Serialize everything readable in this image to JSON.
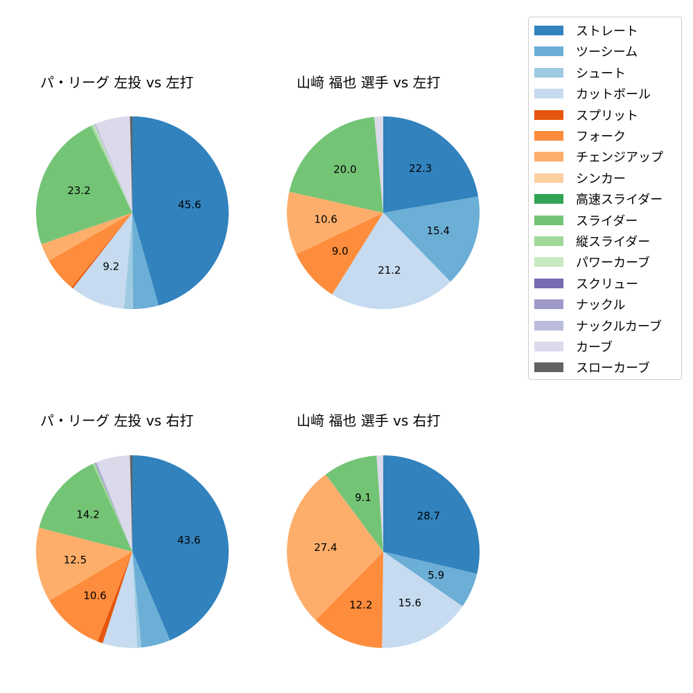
{
  "chart_data": [
    {
      "type": "pie",
      "title": "パ・リーグ 左投 vs 左打",
      "categories": [
        "ストレート",
        "ツーシーム",
        "シュート",
        "カットボール",
        "スプリット",
        "フォーク",
        "チェンジアップ",
        "シンカー",
        "高速スライダー",
        "スライダー",
        "縦スライダー",
        "パワーカーブ",
        "スクリュー",
        "ナックル",
        "ナックルカーブ",
        "カーブ",
        "スローカーブ"
      ],
      "values": [
        45.6,
        4.3,
        1.5,
        9.2,
        0.3,
        5.8,
        3.0,
        0.0,
        0.0,
        23.2,
        0.4,
        0.2,
        0.0,
        0.0,
        0.3,
        5.8,
        0.4
      ],
      "labels_shown": [
        "45.6",
        "9.2",
        "23.2"
      ]
    },
    {
      "type": "pie",
      "title": "山﨑 福也 選手 vs 左打",
      "categories": [
        "ストレート",
        "ツーシーム",
        "シュート",
        "カットボール",
        "スプリット",
        "フォーク",
        "チェンジアップ",
        "シンカー",
        "高速スライダー",
        "スライダー",
        "縦スライダー",
        "パワーカーブ",
        "スクリュー",
        "ナックル",
        "ナックルカーブ",
        "カーブ",
        "スローカーブ"
      ],
      "values": [
        22.3,
        15.4,
        0.0,
        21.2,
        0.0,
        9.0,
        10.6,
        0.0,
        0.0,
        20.0,
        0.0,
        0.0,
        0.0,
        0.0,
        0.0,
        1.5,
        0.0
      ],
      "labels_shown": [
        "22.3",
        "15.4",
        "21.2",
        "9.0",
        "10.6",
        "20.0"
      ]
    },
    {
      "type": "pie",
      "title": "パ・リーグ 左投 vs 右打",
      "categories": [
        "ストレート",
        "ツーシーム",
        "シュート",
        "カットボール",
        "スプリット",
        "フォーク",
        "チェンジアップ",
        "シンカー",
        "高速スライダー",
        "スライダー",
        "縦スライダー",
        "パワーカーブ",
        "スクリュー",
        "ナックル",
        "ナックルカーブ",
        "カーブ",
        "スローカーブ"
      ],
      "values": [
        43.6,
        4.9,
        0.7,
        5.8,
        0.9,
        10.6,
        12.5,
        0.0,
        0.0,
        14.2,
        0.4,
        0.0,
        0.0,
        0.2,
        0.2,
        5.6,
        0.4
      ],
      "labels_shown": [
        "43.6",
        "10.6",
        "12.5",
        "14.2"
      ]
    },
    {
      "type": "pie",
      "title": "山﨑 福也 選手 vs 右打",
      "categories": [
        "ストレート",
        "ツーシーム",
        "シュート",
        "カットボール",
        "スプリット",
        "フォーク",
        "チェンジアップ",
        "シンカー",
        "高速スライダー",
        "スライダー",
        "縦スライダー",
        "パワーカーブ",
        "スクリュー",
        "ナックル",
        "ナックルカーブ",
        "カーブ",
        "スローカーブ"
      ],
      "values": [
        28.7,
        5.9,
        0.0,
        15.6,
        0.0,
        12.2,
        27.4,
        0.0,
        0.0,
        9.1,
        0.0,
        0.0,
        0.0,
        0.0,
        0.0,
        1.1,
        0.0
      ],
      "labels_shown": [
        "28.7",
        "5.9",
        "15.6",
        "12.2",
        "27.4",
        "9.1"
      ]
    }
  ],
  "legend": {
    "items": [
      {
        "label": "ストレート",
        "color": "#3182bd"
      },
      {
        "label": "ツーシーム",
        "color": "#6baed6"
      },
      {
        "label": "シュート",
        "color": "#9ecae1"
      },
      {
        "label": "カットボール",
        "color": "#c6dbef"
      },
      {
        "label": "スプリット",
        "color": "#e6550d"
      },
      {
        "label": "フォーク",
        "color": "#fd8d3c"
      },
      {
        "label": "チェンジアップ",
        "color": "#fdae6b"
      },
      {
        "label": "シンカー",
        "color": "#fdd0a2"
      },
      {
        "label": "高速スライダー",
        "color": "#31a354"
      },
      {
        "label": "スライダー",
        "color": "#74c476"
      },
      {
        "label": "縦スライダー",
        "color": "#a1d99b"
      },
      {
        "label": "パワーカーブ",
        "color": "#c7e9c0"
      },
      {
        "label": "スクリュー",
        "color": "#756bb1"
      },
      {
        "label": "ナックル",
        "color": "#9e9ac8"
      },
      {
        "label": "ナックルカーブ",
        "color": "#bcbddc"
      },
      {
        "label": "カーブ",
        "color": "#dadaeb"
      },
      {
        "label": "スローカーブ",
        "color": "#636363"
      }
    ]
  },
  "panels": [
    {
      "title": "パ・リーグ 左投 vs 左打"
    },
    {
      "title": "山﨑 福也 選手 vs 左打"
    },
    {
      "title": "パ・リーグ 左投 vs 右打"
    },
    {
      "title": "山﨑 福也 選手 vs 右打"
    }
  ]
}
